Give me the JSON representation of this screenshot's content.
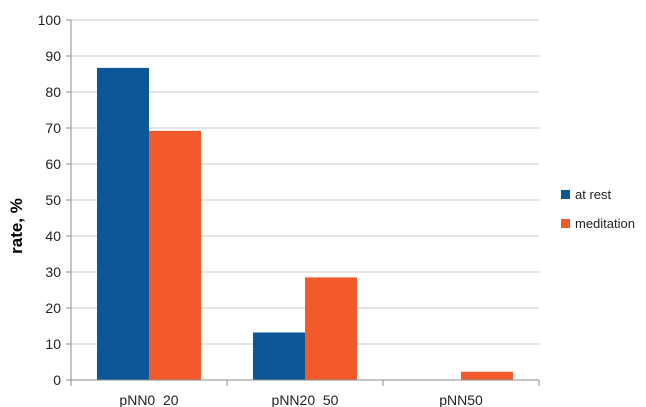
{
  "chart_data": {
    "type": "bar",
    "categories": [
      "pNN0_20",
      "pNN20_50",
      "pNN50"
    ],
    "series": [
      {
        "name": "at rest",
        "color": "#0c5797",
        "values": [
          86.7,
          13.2,
          0
        ]
      },
      {
        "name": "meditation",
        "color": "#f25a2c",
        "values": [
          69.2,
          28.5,
          2.3
        ]
      }
    ],
    "ylabel": "rate, %",
    "xlabel": "",
    "ylim": [
      0,
      100
    ],
    "yticks": [
      0,
      10,
      20,
      30,
      40,
      50,
      60,
      70,
      80,
      90,
      100
    ],
    "grid": true,
    "legend_position": "right"
  }
}
